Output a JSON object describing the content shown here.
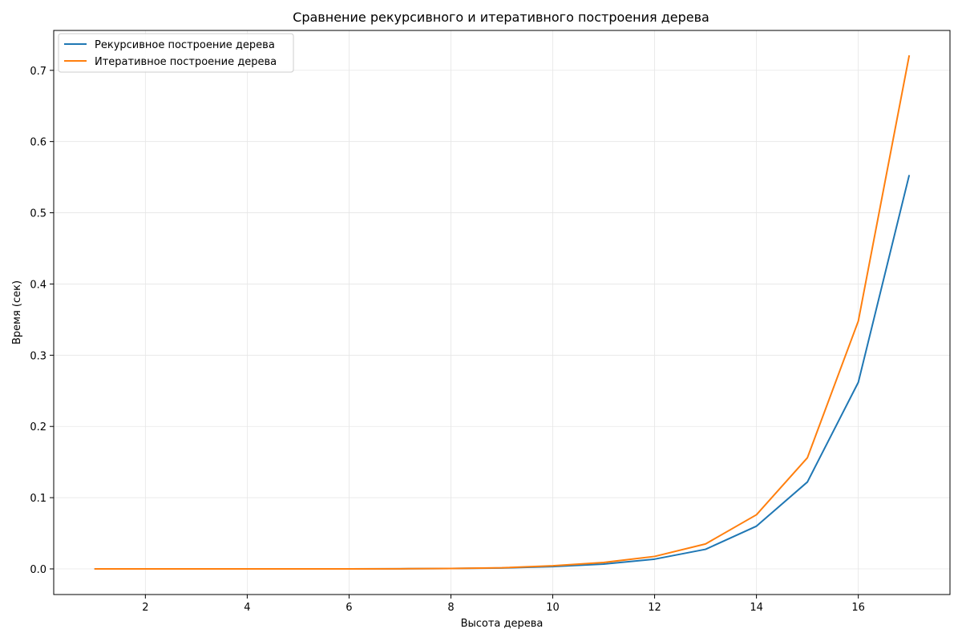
{
  "chart_data": {
    "type": "line",
    "title": "Сравнение рекурсивного и итеративного построения дерева",
    "xlabel": "Высота дерева",
    "ylabel": "Время (сек)",
    "x": [
      1,
      2,
      3,
      4,
      5,
      6,
      7,
      8,
      9,
      10,
      11,
      12,
      13,
      14,
      15,
      16,
      17
    ],
    "xlim": [
      0.2,
      17.8
    ],
    "ylim": [
      -0.036,
      0.756
    ],
    "x_ticks": [
      2,
      4,
      6,
      8,
      10,
      12,
      14,
      16
    ],
    "x_tick_labels": [
      "2",
      "4",
      "6",
      "8",
      "10",
      "12",
      "14",
      "16"
    ],
    "y_ticks": [
      0.0,
      0.1,
      0.2,
      0.3,
      0.4,
      0.5,
      0.6,
      0.7
    ],
    "y_tick_labels": [
      "0.0",
      "0.1",
      "0.2",
      "0.3",
      "0.4",
      "0.5",
      "0.6",
      "0.7"
    ],
    "grid": true,
    "legend_position": "top-left",
    "series": [
      {
        "name": "Рекурсивное построение дерева",
        "color": "#1f77b4",
        "values": [
          0.0,
          0.0,
          0.0,
          0.0,
          0.0,
          0.0,
          0.0002,
          0.0005,
          0.0012,
          0.0033,
          0.0068,
          0.0137,
          0.0275,
          0.06,
          0.122,
          0.262,
          0.553
        ]
      },
      {
        "name": "Итеративное построение дерева",
        "color": "#ff7f0e",
        "values": [
          0.0,
          0.0,
          0.0,
          0.0,
          0.0,
          0.0,
          0.0002,
          0.0006,
          0.0016,
          0.0043,
          0.009,
          0.0175,
          0.035,
          0.076,
          0.156,
          0.348,
          0.721
        ]
      }
    ]
  }
}
